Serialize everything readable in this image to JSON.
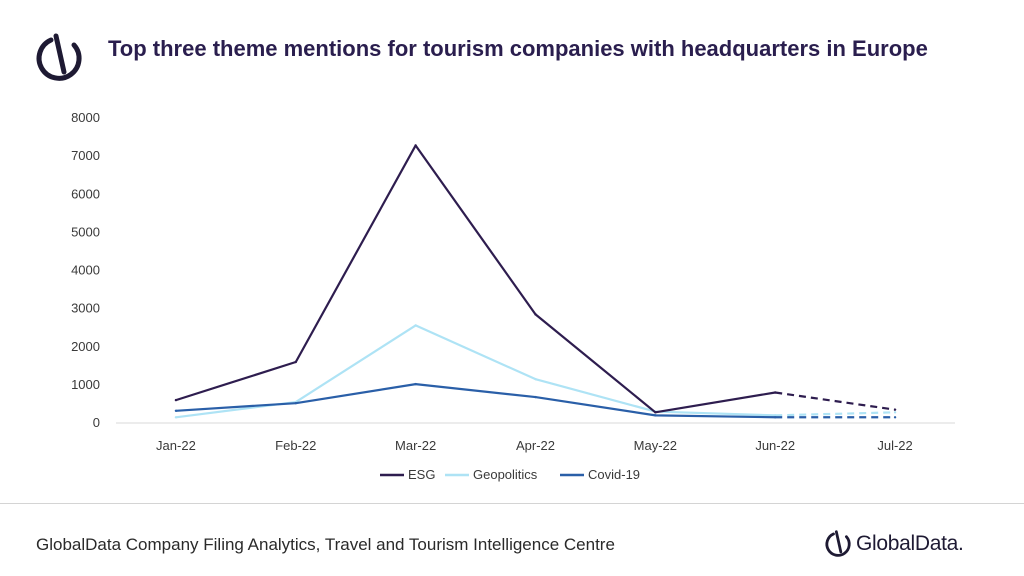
{
  "header": {
    "title": "Top three theme mentions for tourism companies with headquarters in Europe",
    "logo_icon": "globaldata-mark-icon"
  },
  "chart_data": {
    "type": "line",
    "title": "Top three theme mentions for tourism companies with headquarters in Europe",
    "categories": [
      "Jan-22",
      "Feb-22",
      "Mar-22",
      "Apr-22",
      "May-22",
      "Jun-22",
      "Jul-22"
    ],
    "ylim": [
      0,
      8000
    ],
    "yticks": [
      0,
      1000,
      2000,
      3000,
      4000,
      5000,
      6000,
      7000,
      8000
    ],
    "xlabel": "",
    "ylabel": "",
    "grid": false,
    "legend_position": "bottom",
    "projected_from_index": 5,
    "series": [
      {
        "name": "ESG",
        "color": "#2e1d4f",
        "values": [
          600,
          1600,
          7280,
          2850,
          280,
          800,
          350
        ]
      },
      {
        "name": "Geopolitics",
        "color": "#aee3f5",
        "values": [
          150,
          550,
          2560,
          1150,
          300,
          200,
          280
        ]
      },
      {
        "name": "Covid-19",
        "color": "#2a5fa8",
        "values": [
          320,
          520,
          1020,
          680,
          200,
          150,
          150
        ]
      }
    ]
  },
  "footer": {
    "source": "GlobalData Company Filing Analytics, Travel and Tourism Intelligence Centre",
    "brand": "GlobalData.",
    "brand_icon": "globaldata-mark-icon"
  }
}
